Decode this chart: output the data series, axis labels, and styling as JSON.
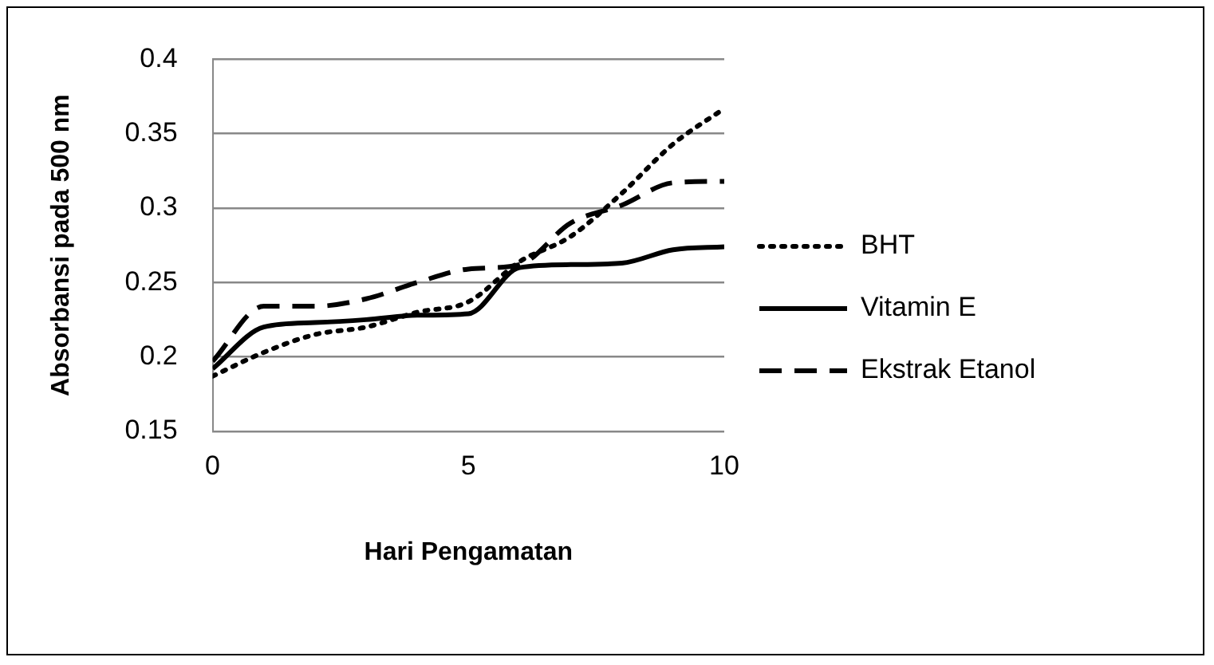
{
  "chart_data": {
    "type": "line",
    "xlabel": "Hari Pengamatan",
    "ylabel": "Absorbansi pada 500 nm",
    "x": [
      0,
      1,
      2,
      3,
      4,
      5,
      6,
      7,
      8,
      9,
      10
    ],
    "series": [
      {
        "name": "BHT",
        "color": "#000000",
        "line_style": "dotted",
        "values": [
          0.187,
          0.203,
          0.215,
          0.22,
          0.23,
          0.237,
          0.264,
          0.281,
          0.31,
          0.343,
          0.367
        ]
      },
      {
        "name": "Vitamin E",
        "color": "#000000",
        "line_style": "solid",
        "values": [
          0.192,
          0.22,
          0.223,
          0.225,
          0.228,
          0.229,
          0.26,
          0.262,
          0.263,
          0.272,
          0.274
        ]
      },
      {
        "name": "Ekstrak Etanol",
        "color": "#000000",
        "line_style": "dashed",
        "values": [
          0.197,
          0.234,
          0.234,
          0.239,
          0.25,
          0.259,
          0.262,
          0.29,
          0.302,
          0.317,
          0.318
        ]
      }
    ],
    "xlim": [
      0,
      10
    ],
    "xticks": [
      0,
      5,
      10
    ],
    "ylim": [
      0.15,
      0.4
    ],
    "yticks": [
      0.15,
      0.2,
      0.25,
      0.3,
      0.35,
      0.4
    ],
    "grid": "y",
    "legend": "right",
    "marker": "none"
  }
}
